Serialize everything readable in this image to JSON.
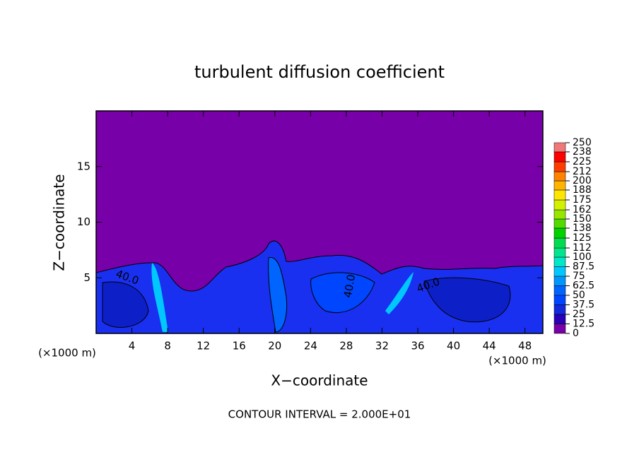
{
  "chart_data": {
    "type": "contour",
    "title": "turbulent diffusion coefficient",
    "xlabel": "X−coordinate",
    "ylabel": "Z−coordinate",
    "x_unit": "(×1000 m)",
    "y_unit": "(×1000 m)",
    "xlim": [
      0,
      50
    ],
    "ylim": [
      0,
      20
    ],
    "xticks": [
      4,
      8,
      12,
      16,
      20,
      24,
      28,
      32,
      36,
      40,
      44,
      48
    ],
    "yticks": [
      5,
      10,
      15
    ],
    "colorbar": {
      "levels": [
        0,
        12.5,
        25,
        37.5,
        50,
        62.5,
        75,
        87.5,
        100,
        112,
        125,
        138,
        150,
        162,
        175,
        188,
        200,
        212,
        225,
        238,
        250
      ],
      "colors": [
        "#7800a8",
        "#2800b8",
        "#1428dc",
        "#0046ff",
        "#0064ff",
        "#0096ff",
        "#00c8ff",
        "#00e6c8",
        "#00e68c",
        "#00dc50",
        "#00d200",
        "#50dc00",
        "#96e600",
        "#d2f000",
        "#ffe600",
        "#ffb400",
        "#ff8200",
        "#ff3c00",
        "#ff0000",
        "#f07878"
      ]
    },
    "contour_labels": [
      "40.0",
      "40.0",
      "40.0"
    ],
    "footer": "CONTOUR INTERVAL = 2.000E+01"
  }
}
